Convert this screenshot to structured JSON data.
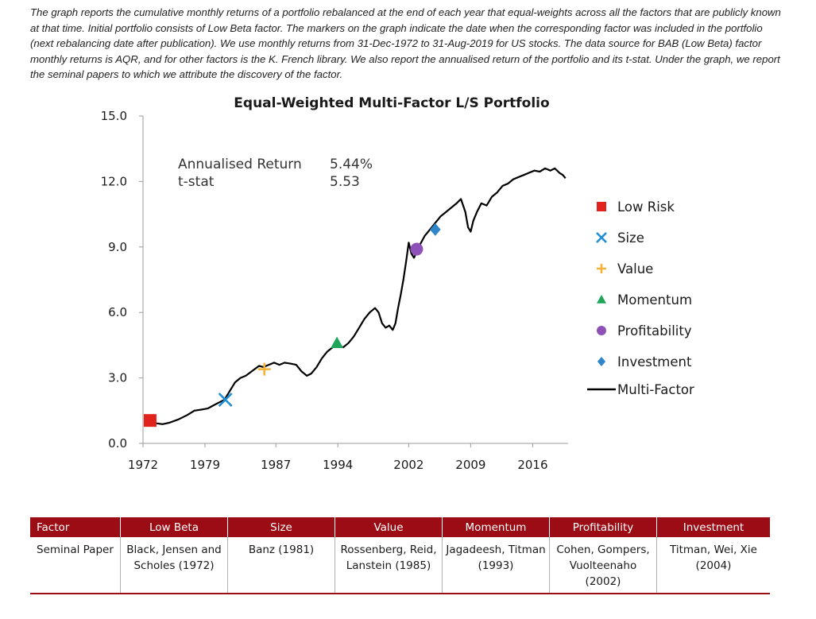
{
  "description": "The graph reports the cumulative monthly returns of a portfolio rebalanced at the end of each year that equal-weights across all the factors that are publicly known at that time. Initial portfolio consists of Low Beta factor. The markers on the graph indicate the date when the corresponding factor was included in the portfolio (next rebalancing date after publication). We use monthly returns from 31-Dec-1972 to 31-Aug-2019 for US stocks. The data source for BAB (Low Beta) factor monthly returns is AQR, and for other factors is the K. French library. We also report the annualised return of the portfolio and its t-stat. Under the graph, we report the seminal papers to which we attribute the discovery of the factor.",
  "chart_data": {
    "type": "line",
    "title": "Equal-Weighted Multi-Factor L/S Portfolio",
    "xlabel": "",
    "ylabel": "",
    "xlim": [
      1972,
      2020
    ],
    "ylim": [
      0,
      15
    ],
    "x_ticks": [
      "1972",
      "1979",
      "1987",
      "1994",
      "2002",
      "2009",
      "2016"
    ],
    "y_ticks": [
      "0.0",
      "3.0",
      "6.0",
      "9.0",
      "12.0",
      "15.0"
    ],
    "grid": false,
    "legend_position": "right",
    "stats": {
      "labels": [
        "Annualised Return",
        "t-stat"
      ],
      "values": [
        "5.44%",
        "5.53"
      ]
    },
    "series": [
      {
        "name": "Multi-Factor",
        "color": "#000000",
        "x": [
          1972.9,
          1973.5,
          1974.2,
          1975.0,
          1976.0,
          1977.0,
          1977.8,
          1978.6,
          1979.3,
          1980.0,
          1980.7,
          1981.2,
          1981.8,
          1982.4,
          1983.0,
          1983.6,
          1984.1,
          1984.6,
          1985.1,
          1985.6,
          1986.2,
          1986.8,
          1987.4,
          1988.0,
          1988.7,
          1989.3,
          1989.9,
          1990.5,
          1991.0,
          1991.6,
          1992.2,
          1992.8,
          1993.4,
          1994.0,
          1994.6,
          1995.2,
          1995.8,
          1996.4,
          1997.0,
          1997.6,
          1998.2,
          1998.6,
          1999.0,
          1999.4,
          1999.8,
          2000.2,
          2000.5,
          2000.8,
          2001.1,
          2001.4,
          2001.7,
          2002.0,
          2002.3,
          2002.6,
          2003.0,
          2003.4,
          2003.8,
          2004.2,
          2004.6,
          2005.0,
          2005.6,
          2006.2,
          2006.8,
          2007.4,
          2007.9,
          2008.4,
          2008.7,
          2009.0,
          2009.3,
          2009.7,
          2010.2,
          2010.8,
          2011.4,
          2012.0,
          2012.6,
          2013.2,
          2013.8,
          2014.4,
          2015.0,
          2015.6,
          2016.2,
          2016.8,
          2017.4,
          2018.0,
          2018.5,
          2019.0,
          2019.4,
          2019.7
        ],
        "y": [
          1.0,
          0.92,
          0.88,
          0.95,
          1.1,
          1.3,
          1.5,
          1.55,
          1.6,
          1.75,
          1.9,
          2.0,
          2.4,
          2.8,
          3.0,
          3.1,
          3.25,
          3.4,
          3.55,
          3.5,
          3.6,
          3.7,
          3.6,
          3.7,
          3.65,
          3.6,
          3.3,
          3.1,
          3.2,
          3.5,
          3.9,
          4.2,
          4.4,
          4.5,
          4.4,
          4.6,
          4.9,
          5.3,
          5.7,
          6.0,
          6.2,
          6.0,
          5.5,
          5.3,
          5.4,
          5.2,
          5.5,
          6.2,
          6.8,
          7.5,
          8.3,
          9.2,
          8.7,
          8.5,
          8.9,
          9.2,
          9.5,
          9.7,
          9.9,
          10.1,
          10.4,
          10.6,
          10.8,
          11.0,
          11.2,
          10.6,
          9.9,
          9.7,
          10.2,
          10.6,
          11.0,
          10.9,
          11.3,
          11.5,
          11.8,
          11.9,
          12.1,
          12.2,
          12.3,
          12.4,
          12.5,
          12.45,
          12.6,
          12.5,
          12.6,
          12.4,
          12.3,
          12.15
        ]
      }
    ],
    "markers": [
      {
        "name": "Low Risk",
        "shape": "square",
        "color": "#e0231d",
        "x": 1972.8,
        "y": 1.05
      },
      {
        "name": "Size",
        "shape": "x",
        "color": "#1f8fd8",
        "x": 1981.3,
        "y": 2.0
      },
      {
        "name": "Value",
        "shape": "plus",
        "color": "#f5b237",
        "x": 1985.7,
        "y": 3.4
      },
      {
        "name": "Momentum",
        "shape": "triangle",
        "color": "#1ea55a",
        "x": 1993.9,
        "y": 4.6
      },
      {
        "name": "Profitability",
        "shape": "circle",
        "color": "#8e51b7",
        "x": 2002.9,
        "y": 8.9
      },
      {
        "name": "Investment",
        "shape": "diamond",
        "color": "#2e86c8",
        "x": 2005.0,
        "y": 9.8
      }
    ]
  },
  "table": {
    "header_color": "#9c0c14",
    "headers": [
      "Factor",
      "Low Beta",
      "Size",
      "Value",
      "Momentum",
      "Profitability",
      "Investment"
    ],
    "row": [
      "Seminal Paper",
      "Black, Jensen and Scholes (1972)",
      "Banz (1981)",
      "Rossenberg, Reid, Lanstein (1985)",
      "Jagadeesh, Titman (1993)",
      "Cohen, Gompers, Vuolteenaho (2002)",
      "Titman, Wei, Xie (2004)"
    ]
  }
}
